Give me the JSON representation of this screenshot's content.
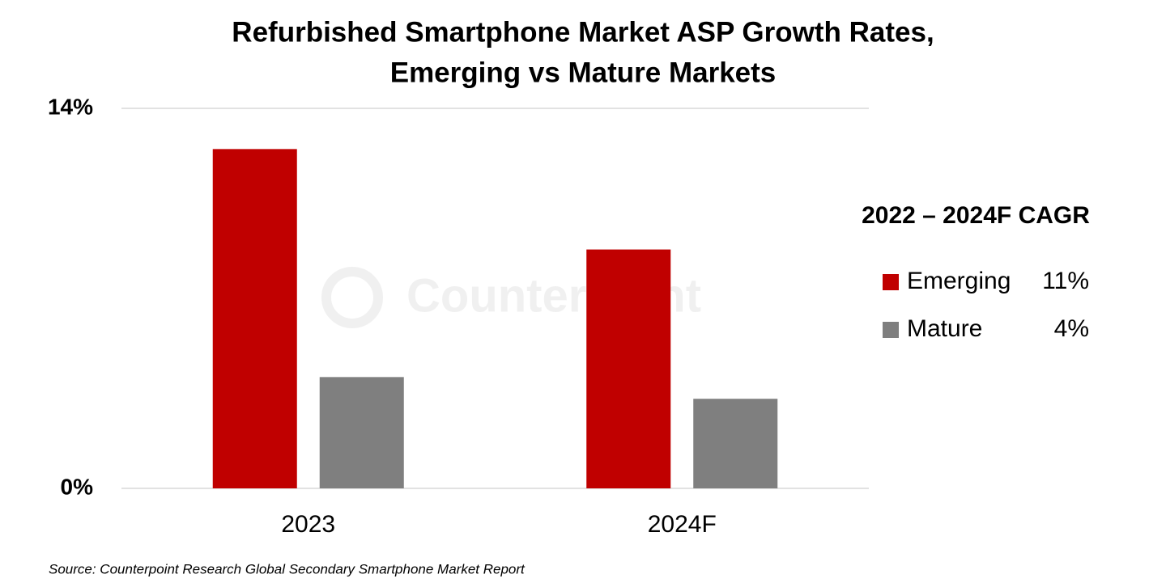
{
  "chart_data": {
    "type": "bar",
    "title": [
      "Refurbished Smartphone Market ASP Growth Rates,",
      "Emerging vs Mature Markets"
    ],
    "categories": [
      "2023",
      "2024F"
    ],
    "series": [
      {
        "name": "Emerging",
        "color": "#c00000",
        "values": [
          12.5,
          8.8
        ],
        "cagr": 11,
        "cagr_label": "11%"
      },
      {
        "name": "Mature",
        "color": "#7f7f7f",
        "values": [
          4.1,
          3.3
        ],
        "cagr": 4,
        "cagr_label": "4%"
      }
    ],
    "ylim": [
      0,
      14
    ],
    "yticks": [
      {
        "value": 0,
        "label": "0%"
      },
      {
        "value": 14,
        "label": "14%"
      }
    ],
    "grid": true,
    "legend_title": "2022 – 2024F CAGR",
    "legend_position": "right",
    "watermark": "Counterpoint",
    "source": "Source: Counterpoint Research Global Secondary Smartphone Market Report"
  }
}
